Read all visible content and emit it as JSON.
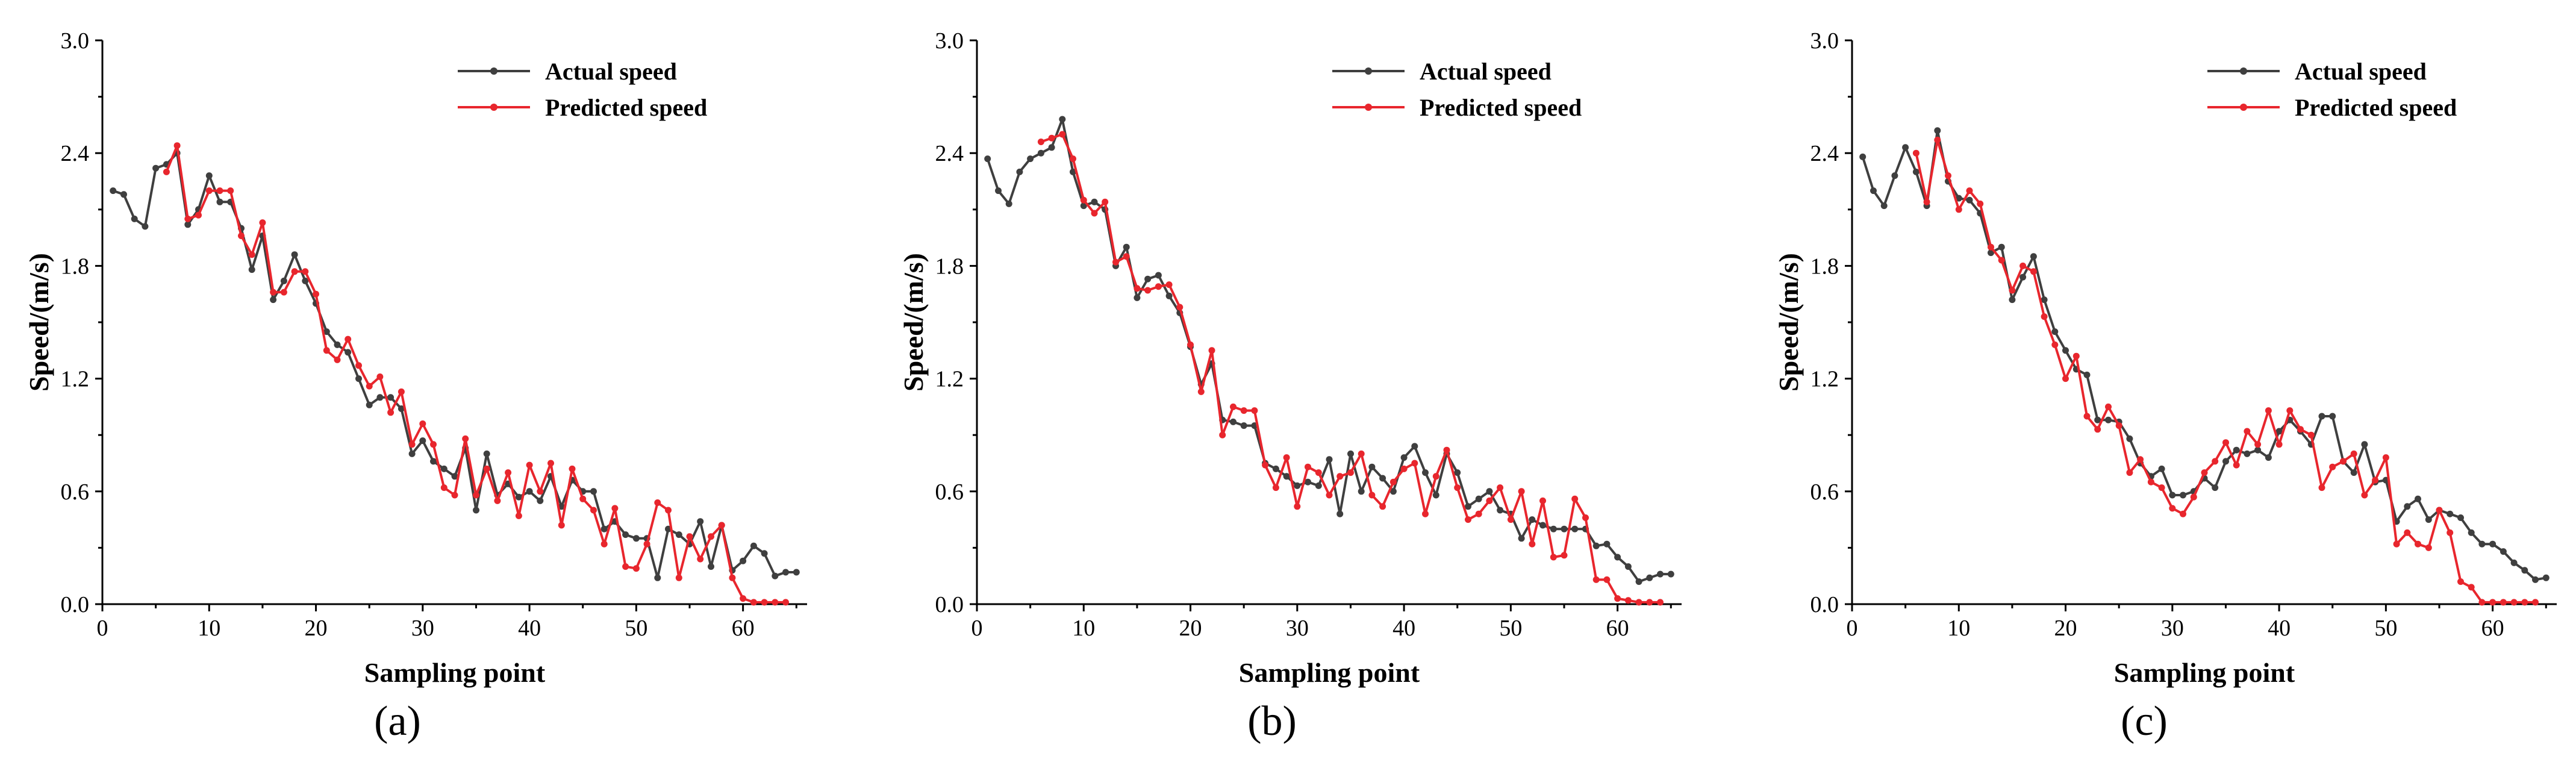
{
  "colors": {
    "actual": "#3f3f3f",
    "predicted": "#e8262d",
    "axis": "#000000"
  },
  "panel_labels": [
    "(a)",
    "(b)",
    "(c)"
  ],
  "chart_data": [
    {
      "type": "line",
      "title": "",
      "xlabel": "Sampling point",
      "ylabel": "Speed/(m/s)",
      "xlim": [
        0,
        66
      ],
      "ylim": [
        0,
        3.0
      ],
      "xticks": [
        "0",
        "10",
        "20",
        "30",
        "40",
        "50",
        "60"
      ],
      "yticks": [
        "0.0",
        "0.6",
        "1.2",
        "1.8",
        "2.4",
        "3.0"
      ],
      "legend_position": "top-right",
      "series": [
        {
          "name": "Actual speed",
          "x_start": 1,
          "values": [
            2.2,
            2.18,
            2.05,
            2.01,
            2.32,
            2.34,
            2.4,
            2.02,
            2.1,
            2.28,
            2.14,
            2.14,
            2.0,
            1.78,
            1.96,
            1.62,
            1.72,
            1.86,
            1.72,
            1.6,
            1.45,
            1.38,
            1.34,
            1.2,
            1.06,
            1.1,
            1.1,
            1.04,
            0.8,
            0.87,
            0.76,
            0.72,
            0.68,
            0.83,
            0.5,
            0.8,
            0.58,
            0.64,
            0.57,
            0.6,
            0.55,
            0.68,
            0.52,
            0.66,
            0.6,
            0.6,
            0.4,
            0.44,
            0.37,
            0.35,
            0.35,
            0.14,
            0.4,
            0.37,
            0.32,
            0.44,
            0.2,
            0.42,
            0.18,
            0.23,
            0.31,
            0.27,
            0.15,
            0.17,
            0.17
          ]
        },
        {
          "name": "Predicted speed",
          "x_start": 6,
          "values": [
            2.3,
            2.44,
            2.05,
            2.07,
            2.2,
            2.2,
            2.2,
            1.96,
            1.86,
            2.03,
            1.66,
            1.66,
            1.77,
            1.77,
            1.65,
            1.35,
            1.3,
            1.41,
            1.27,
            1.16,
            1.21,
            1.02,
            1.13,
            0.85,
            0.96,
            0.85,
            0.62,
            0.58,
            0.88,
            0.58,
            0.72,
            0.55,
            0.7,
            0.47,
            0.74,
            0.6,
            0.75,
            0.42,
            0.72,
            0.56,
            0.5,
            0.32,
            0.51,
            0.2,
            0.19,
            0.32,
            0.54,
            0.5,
            0.14,
            0.36,
            0.24,
            0.36,
            0.42,
            0.14,
            0.03,
            0.01,
            0.01,
            0.01,
            0.01
          ]
        }
      ]
    },
    {
      "type": "line",
      "title": "",
      "xlabel": "Sampling point",
      "ylabel": "Speed/(m/s)",
      "xlim": [
        0,
        66
      ],
      "ylim": [
        0,
        3.0
      ],
      "xticks": [
        "0",
        "10",
        "20",
        "30",
        "40",
        "50",
        "60"
      ],
      "yticks": [
        "0.0",
        "0.6",
        "1.2",
        "1.8",
        "2.4",
        "3.0"
      ],
      "legend_position": "top-right",
      "series": [
        {
          "name": "Actual speed",
          "x_start": 1,
          "values": [
            2.37,
            2.2,
            2.13,
            2.3,
            2.37,
            2.4,
            2.43,
            2.58,
            2.3,
            2.12,
            2.14,
            2.1,
            1.8,
            1.9,
            1.63,
            1.73,
            1.75,
            1.64,
            1.55,
            1.37,
            1.17,
            1.28,
            0.98,
            0.97,
            0.95,
            0.95,
            0.75,
            0.72,
            0.68,
            0.63,
            0.65,
            0.63,
            0.77,
            0.48,
            0.8,
            0.6,
            0.73,
            0.67,
            0.6,
            0.78,
            0.84,
            0.7,
            0.58,
            0.8,
            0.7,
            0.52,
            0.56,
            0.6,
            0.5,
            0.48,
            0.35,
            0.45,
            0.42,
            0.4,
            0.4,
            0.4,
            0.4,
            0.31,
            0.32,
            0.25,
            0.2,
            0.12,
            0.14,
            0.16,
            0.16
          ]
        },
        {
          "name": "Predicted speed",
          "x_start": 6,
          "values": [
            2.46,
            2.48,
            2.5,
            2.37,
            2.15,
            2.08,
            2.14,
            1.82,
            1.85,
            1.68,
            1.67,
            1.69,
            1.7,
            1.58,
            1.38,
            1.13,
            1.35,
            0.9,
            1.05,
            1.03,
            1.03,
            0.74,
            0.62,
            0.78,
            0.52,
            0.73,
            0.7,
            0.58,
            0.68,
            0.7,
            0.8,
            0.58,
            0.52,
            0.65,
            0.72,
            0.75,
            0.48,
            0.68,
            0.82,
            0.62,
            0.45,
            0.48,
            0.55,
            0.62,
            0.45,
            0.6,
            0.32,
            0.55,
            0.25,
            0.26,
            0.56,
            0.46,
            0.13,
            0.13,
            0.03,
            0.02,
            0.01,
            0.01,
            0.01
          ]
        }
      ]
    },
    {
      "type": "line",
      "title": "",
      "xlabel": "Sampling point",
      "ylabel": "Speed/(m/s)",
      "xlim": [
        0,
        66
      ],
      "ylim": [
        0,
        3.0
      ],
      "xticks": [
        "0",
        "10",
        "20",
        "30",
        "40",
        "50",
        "60"
      ],
      "yticks": [
        "0.0",
        "0.6",
        "1.2",
        "1.8",
        "2.4",
        "3.0"
      ],
      "legend_position": "top-right",
      "series": [
        {
          "name": "Actual speed",
          "x_start": 1,
          "values": [
            2.38,
            2.2,
            2.12,
            2.28,
            2.43,
            2.3,
            2.12,
            2.52,
            2.25,
            2.16,
            2.15,
            2.08,
            1.87,
            1.9,
            1.62,
            1.74,
            1.85,
            1.62,
            1.45,
            1.35,
            1.25,
            1.22,
            0.98,
            0.98,
            0.97,
            0.88,
            0.75,
            0.68,
            0.72,
            0.58,
            0.58,
            0.6,
            0.67,
            0.62,
            0.76,
            0.82,
            0.8,
            0.82,
            0.78,
            0.92,
            0.98,
            0.92,
            0.85,
            1.0,
            1.0,
            0.76,
            0.7,
            0.85,
            0.65,
            0.66,
            0.44,
            0.52,
            0.56,
            0.45,
            0.5,
            0.48,
            0.46,
            0.38,
            0.32,
            0.32,
            0.28,
            0.22,
            0.18,
            0.13,
            0.14
          ]
        },
        {
          "name": "Predicted speed",
          "x_start": 6,
          "values": [
            2.4,
            2.14,
            2.47,
            2.28,
            2.1,
            2.2,
            2.13,
            1.9,
            1.83,
            1.67,
            1.8,
            1.77,
            1.53,
            1.38,
            1.2,
            1.32,
            1.0,
            0.93,
            1.05,
            0.95,
            0.7,
            0.77,
            0.65,
            0.62,
            0.51,
            0.48,
            0.57,
            0.7,
            0.76,
            0.86,
            0.74,
            0.92,
            0.85,
            1.03,
            0.85,
            1.03,
            0.93,
            0.9,
            0.62,
            0.73,
            0.76,
            0.8,
            0.58,
            0.66,
            0.78,
            0.32,
            0.38,
            0.32,
            0.3,
            0.5,
            0.38,
            0.12,
            0.09,
            0.01,
            0.01,
            0.01,
            0.01,
            0.01,
            0.01
          ]
        }
      ]
    }
  ]
}
